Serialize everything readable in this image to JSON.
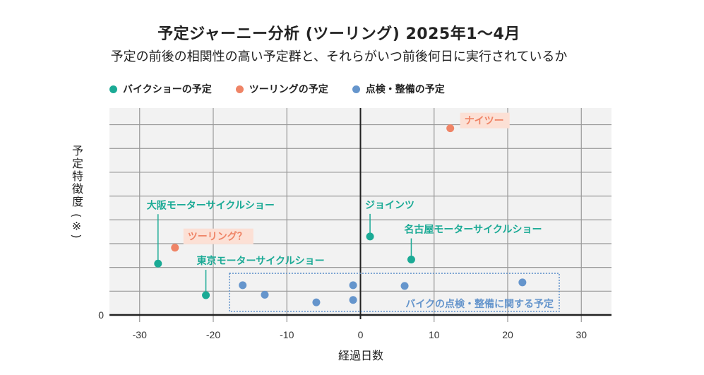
{
  "chart_data": {
    "type": "scatter",
    "title": "予定ジャーニー分析 (ツーリング) 2025年1〜4月",
    "subtitle": "予定の前後の相関性の高い予定群と、それらがいつ前後何日に実行されているか",
    "xlabel": "経過日数",
    "ylabel": "予定特徴度 (※)",
    "xlim": [
      -34.1,
      34.1
    ],
    "ylim": [
      0,
      8.7
    ],
    "x_ticks": [
      -30,
      -20,
      -10,
      0,
      10,
      20,
      30
    ],
    "y_ticks": [
      0
    ],
    "y_gridlines": [
      1,
      2,
      3,
      4,
      5,
      6,
      7,
      8
    ],
    "grid": true,
    "legend_position": "top-left",
    "series": [
      {
        "name": "バイクショーの予定",
        "color": "#1aaa95",
        "points": [
          {
            "x": -27.5,
            "y": 2.16,
            "label": "大阪モーターサイクルショー"
          },
          {
            "x": -21.0,
            "y": 0.83,
            "label": "東京モーターサイクルショー"
          },
          {
            "x": 1.3,
            "y": 3.3,
            "label": "ジョインツ"
          },
          {
            "x": 6.9,
            "y": 2.33,
            "label": "名古屋モーターサイクルショー"
          }
        ]
      },
      {
        "name": "ツーリングの予定",
        "color": "#ef8466",
        "points": [
          {
            "x": 12.2,
            "y": 7.85,
            "label": "ナイツー"
          },
          {
            "x": -25.2,
            "y": 2.83,
            "label": "ツーリング？"
          }
        ]
      },
      {
        "name": "点検・整備の予定",
        "color": "#6595cc",
        "points": [
          {
            "x": -16.0,
            "y": 1.25
          },
          {
            "x": -13.0,
            "y": 0.85
          },
          {
            "x": -6.0,
            "y": 0.53
          },
          {
            "x": -1.0,
            "y": 1.25
          },
          {
            "x": -1.0,
            "y": 0.63
          },
          {
            "x": 6.0,
            "y": 1.22
          },
          {
            "x": 22.0,
            "y": 1.37
          }
        ]
      }
    ],
    "annotations": [
      {
        "text": "大阪モーターサイクルショー",
        "series": 0,
        "point": 0,
        "style": "leader"
      },
      {
        "text": "東京モーターサイクルショー",
        "series": 0,
        "point": 1,
        "style": "leader"
      },
      {
        "text": "ジョインツ",
        "series": 0,
        "point": 2,
        "style": "leader"
      },
      {
        "text": "名古屋モーターサイクルショー",
        "series": 0,
        "point": 3,
        "style": "leader"
      },
      {
        "text": "ナイツー",
        "series": 1,
        "point": 0,
        "style": "highlight"
      },
      {
        "text": "ツーリング？",
        "series": 1,
        "point": 1,
        "style": "highlight"
      }
    ],
    "group_box": {
      "text": "バイクの点検・整備に関する予定",
      "color": "#6595cc",
      "x_range": [
        -17.8,
        27.0
      ],
      "y_range": [
        0.15,
        1.75
      ]
    },
    "colors": {
      "plot_bg": "#f2f2f2",
      "grid": "#999999",
      "axis": "#222222",
      "highlight_bg": "#fce0d5"
    }
  }
}
